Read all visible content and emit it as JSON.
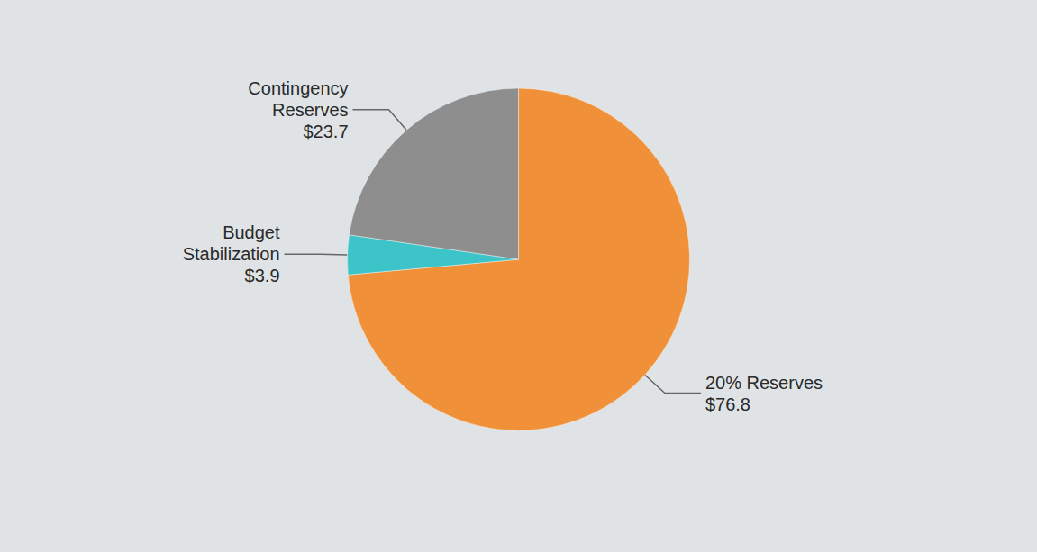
{
  "chart_data": {
    "type": "pie",
    "categories": [
      "20% Reserves",
      "Budget Stabilization",
      "Contingency Reserves"
    ],
    "values": [
      76.8,
      3.9,
      23.7
    ],
    "value_labels": [
      "$76.8",
      "$3.9",
      "$23.7"
    ],
    "colors": [
      "#f0913a",
      "#3cc4c8",
      "#8e8e8e"
    ],
    "data_labels": true
  }
}
